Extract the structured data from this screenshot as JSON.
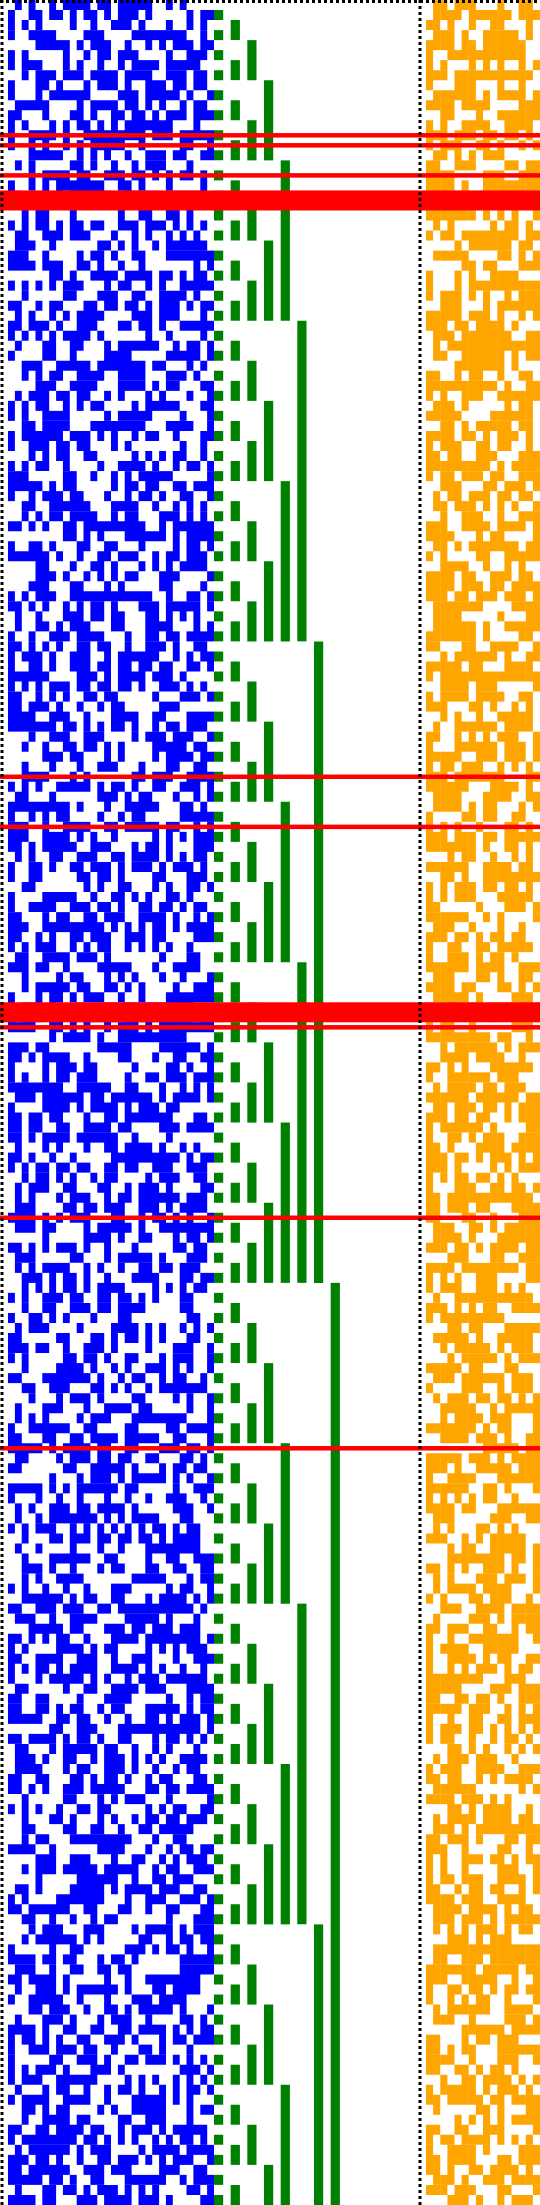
{
  "colors": {
    "background": "#ffffff",
    "noise_block": "#0000ff",
    "counter_block": "#008000",
    "sparse_block": "#ffa500",
    "highlight_rows": "#ff0000",
    "separator_dots": "#000000"
  },
  "pattern": {
    "rows": 220,
    "noise_columns": 30,
    "noise_density": 0.52,
    "sparse_columns": 16,
    "sparse_density": 0.62,
    "counter_bits": 12,
    "highlight_bands": [
      {
        "from_row": 13,
        "to_row": 13
      },
      {
        "from_row": 14,
        "to_row": 14
      },
      {
        "from_row": 17,
        "to_row": 17
      },
      {
        "from_row": 19,
        "to_row": 20
      },
      {
        "from_row": 77,
        "to_row": 77
      },
      {
        "from_row": 82,
        "to_row": 82
      },
      {
        "from_row": 100,
        "to_row": 101
      },
      {
        "from_row": 102,
        "to_row": 102
      },
      {
        "from_row": 121,
        "to_row": 121
      },
      {
        "from_row": 144,
        "to_row": 144
      }
    ]
  }
}
